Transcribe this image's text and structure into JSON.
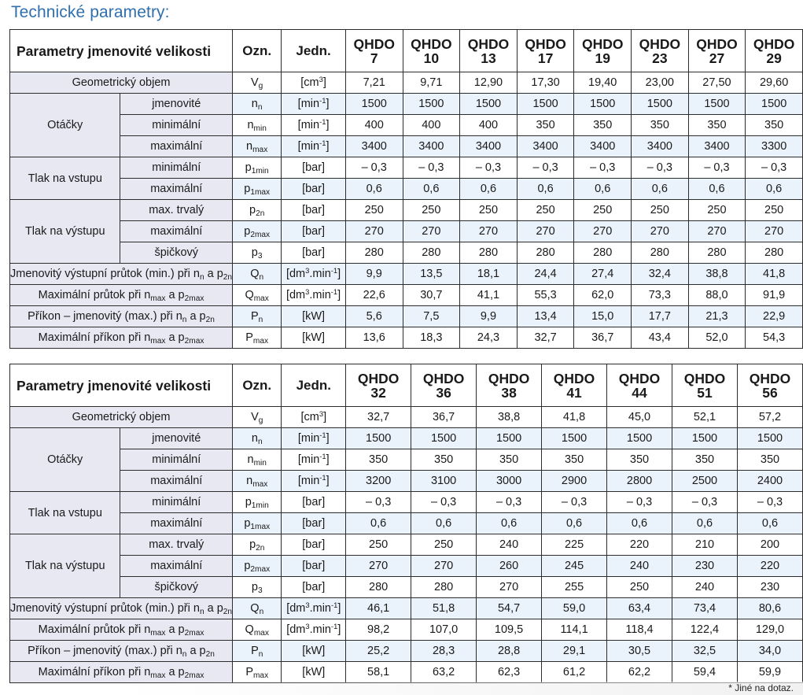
{
  "title": "Technické parametry:",
  "footnote": "* Jiné na dotaz.",
  "headers": {
    "params": "Parametry jmenovité velikosti",
    "symbol": "Ozn.",
    "unit": "Jedn."
  },
  "row_labels": {
    "geom": "Geometrický objem",
    "otacky": "Otáčky",
    "tlak_vstup": "Tlak na vstupu",
    "tlak_vystup": "Tlak na výstupu",
    "prutok_jm": "Jmenovitý výstupní průtok (min.) při n",
    "prutok_max": "Maximální průtok při n",
    "prikon_jm": "Příkon – jmenovitý (max.) při n",
    "prikon_max": "Maximální příkon při n",
    "a": " a p",
    "sub_jmen": "jmenovité",
    "sub_min": "minimální",
    "sub_max": "maximální",
    "sub_trvaly": "max. trvalý",
    "sub_spick": "špičkový"
  },
  "subs": {
    "n": "n",
    "max": "max",
    "min": "min",
    "2n": "2n",
    "2max": "2max",
    "1min": "1min",
    "1max": "1max",
    "g": "g"
  },
  "symbols": {
    "V": "V",
    "n": "n",
    "p1": "p",
    "p2": "p",
    "p3": "p",
    "p3sub": "3",
    "Q": "Q",
    "P": "P"
  },
  "units": {
    "cm3": "[cm",
    "cm3sup": "3",
    "close": "]",
    "min": "[min",
    "minsup": "-1",
    "bar": "[bar]",
    "dm3": "[dm",
    "dm3sup": "3",
    "dm3rest": ".min",
    "dm3rest_sup": "-1",
    "kw": "[kW]"
  },
  "table1": {
    "model": "QHDO",
    "sizes": [
      "7",
      "10",
      "13",
      "17",
      "19",
      "23",
      "27",
      "29"
    ],
    "rows": {
      "geom": [
        "7,21",
        "9,71",
        "12,90",
        "17,30",
        "19,40",
        "23,00",
        "27,50",
        "29,60"
      ],
      "n_jm": [
        "1500",
        "1500",
        "1500",
        "1500",
        "1500",
        "1500",
        "1500",
        "1500"
      ],
      "n_min": [
        "400",
        "400",
        "400",
        "350",
        "350",
        "350",
        "350",
        "350"
      ],
      "n_max": [
        "3400",
        "3400",
        "3400",
        "3400",
        "3400",
        "3400",
        "3400",
        "3300"
      ],
      "p1_min": [
        "– 0,3",
        "– 0,3",
        "– 0,3",
        "– 0,3",
        "– 0,3",
        "– 0,3",
        "– 0,3",
        "– 0,3"
      ],
      "p1_max": [
        "0,6",
        "0,6",
        "0,6",
        "0,6",
        "0,6",
        "0,6",
        "0,6",
        "0,6"
      ],
      "p2_trv": [
        "250",
        "250",
        "250",
        "250",
        "250",
        "250",
        "250",
        "250"
      ],
      "p2_max": [
        "270",
        "270",
        "270",
        "270",
        "270",
        "270",
        "270",
        "270"
      ],
      "p3": [
        "280",
        "280",
        "280",
        "280",
        "280",
        "280",
        "280",
        "280"
      ],
      "q_n": [
        "9,9",
        "13,5",
        "18,1",
        "24,4",
        "27,4",
        "32,4",
        "38,8",
        "41,8"
      ],
      "q_max": [
        "22,6",
        "30,7",
        "41,1",
        "55,3",
        "62,0",
        "73,3",
        "88,0",
        "91,9"
      ],
      "p_n": [
        "5,6",
        "7,5",
        "9,9",
        "13,4",
        "15,0",
        "17,7",
        "21,3",
        "22,9"
      ],
      "p_max": [
        "13,6",
        "18,3",
        "24,3",
        "32,7",
        "36,7",
        "43,4",
        "52,0",
        "54,3"
      ]
    }
  },
  "table2": {
    "model": "QHDO",
    "sizes": [
      "32",
      "36",
      "38",
      "41",
      "44",
      "51",
      "56"
    ],
    "rows": {
      "geom": [
        "32,7",
        "36,7",
        "38,8",
        "41,8",
        "45,0",
        "52,1",
        "57,2"
      ],
      "n_jm": [
        "1500",
        "1500",
        "1500",
        "1500",
        "1500",
        "1500",
        "1500"
      ],
      "n_min": [
        "350",
        "350",
        "350",
        "350",
        "350",
        "350",
        "350"
      ],
      "n_max": [
        "3200",
        "3100",
        "3000",
        "2900",
        "2800",
        "2500",
        "2400"
      ],
      "p1_min": [
        "– 0,3",
        "– 0,3",
        "– 0,3",
        "– 0,3",
        "– 0,3",
        "– 0,3",
        "– 0,3"
      ],
      "p1_max": [
        "0,6",
        "0,6",
        "0,6",
        "0,6",
        "0,6",
        "0,6",
        "0,6"
      ],
      "p2_trv": [
        "250",
        "250",
        "240",
        "225",
        "220",
        "210",
        "200"
      ],
      "p2_max": [
        "270",
        "270",
        "260",
        "245",
        "240",
        "230",
        "220"
      ],
      "p3": [
        "280",
        "280",
        "270",
        "255",
        "250",
        "240",
        "230"
      ],
      "q_n": [
        "46,1",
        "51,8",
        "54,7",
        "59,0",
        "63,4",
        "73,4",
        "80,6"
      ],
      "q_max": [
        "98,2",
        "107,0",
        "109,5",
        "114,1",
        "118,4",
        "122,4",
        "129,0"
      ],
      "p_n": [
        "25,2",
        "28,3",
        "28,8",
        "29,1",
        "30,5",
        "32,5",
        "34,0"
      ],
      "p_max": [
        "58,1",
        "63,2",
        "62,3",
        "61,2",
        "62,2",
        "59,4",
        "59,9"
      ]
    }
  }
}
